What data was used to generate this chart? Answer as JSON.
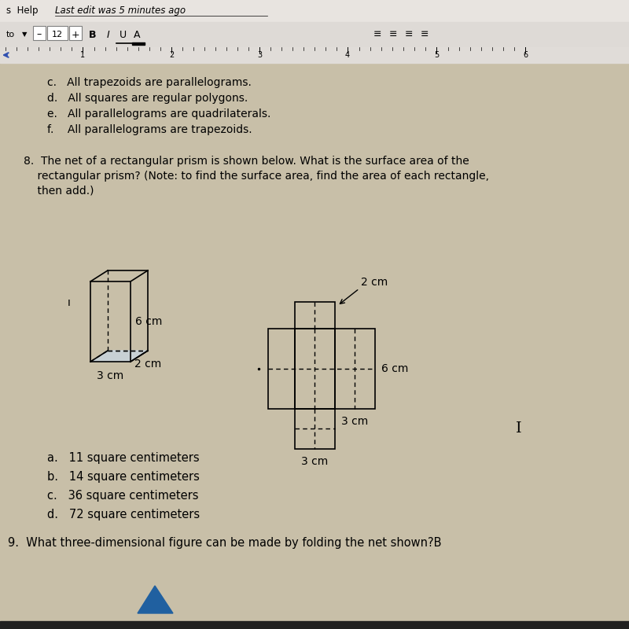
{
  "bg_color": "#c8bfa8",
  "toolbar1_bg": "#e8e4e0",
  "toolbar2_bg": "#dedad6",
  "ruler_bg": "#e0dcd8",
  "title_bar_text": "s Help    Last edit was 5 minutes ago",
  "prev_items": [
    "c.   All trapezoids are parallelograms.",
    "d.   All squares are regular polygons.",
    "e.   All parallelograms are quadrilaterals.",
    "f.    All parallelograms are trapezoids."
  ],
  "question8_line1": "8.  The net of a rectangular prism is shown below. What is the surface area of the",
  "question8_line2": "    rectangular prism? (Note: to find the surface area, find the area of each rectangle,",
  "question8_line3": "    then add.)",
  "choices": [
    "a.   11 square centimeters",
    "b.   14 square centimeters",
    "c.   36 square centimeters",
    "d.   72 square centimeters"
  ],
  "question9_text": "9.  What three-dimensional figure can be made by folding the net shown?B",
  "dim_3cm": "3 cm",
  "dim_2cm": "2 cm",
  "dim_6cm": "6 cm",
  "prism_fill": "#c8d8e8",
  "triangle_color": "#2060a0"
}
